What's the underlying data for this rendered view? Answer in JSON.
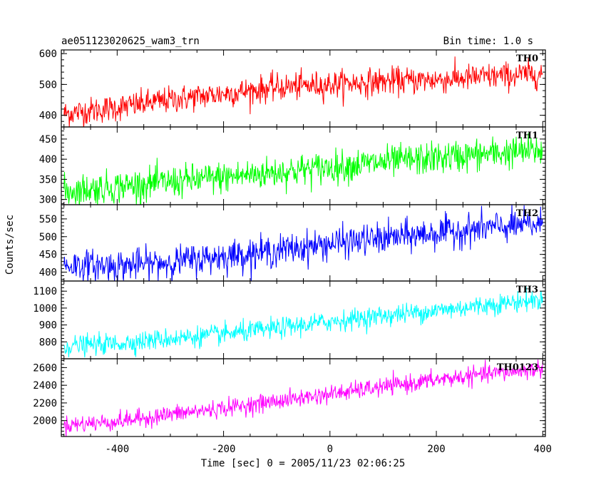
{
  "header": {
    "title": "ae051123020625_wam3_trn",
    "bin_time": "Bin time: 1.0 s"
  },
  "xlabel": "Time [sec] 0 = 2005/11/23 02:06:25",
  "ylabel": "Counts/sec",
  "chart_data": {
    "type": "line",
    "title": "ae051123020625_wam3_trn",
    "xlabel": "Time [sec] 0 = 2005/11/23 02:06:25",
    "ylabel": "Counts/sec",
    "xlim": [
      -505,
      405
    ],
    "x_ticks": [
      -400,
      -200,
      0,
      200,
      400
    ],
    "x_range": [
      -500,
      400
    ],
    "bin_time_s": 1.0,
    "grid": false,
    "series": [
      {
        "name": "TH0",
        "color": "#ff0000",
        "ylim": [
          362,
          612
        ],
        "y_ticks": [
          400,
          500,
          600
        ],
        "trend_x": [
          -500,
          -400,
          -300,
          -200,
          -100,
          0,
          100,
          200,
          300,
          400
        ],
        "trend_y": [
          405,
          425,
          450,
          470,
          490,
          500,
          510,
          515,
          525,
          535
        ],
        "noise_sd": 22
      },
      {
        "name": "TH1",
        "color": "#00ff00",
        "ylim": [
          287,
          480
        ],
        "y_ticks": [
          300,
          350,
          400,
          450
        ],
        "trend_x": [
          -500,
          -400,
          -300,
          -200,
          -100,
          0,
          100,
          200,
          300,
          400
        ],
        "trend_y": [
          320,
          332,
          343,
          355,
          368,
          380,
          392,
          403,
          413,
          422
        ],
        "noise_sd": 20
      },
      {
        "name": "TH2",
        "color": "#0000ff",
        "ylim": [
          375,
          590
        ],
        "y_ticks": [
          400,
          450,
          500,
          550
        ],
        "trend_x": [
          -500,
          -400,
          -300,
          -200,
          -100,
          0,
          100,
          200,
          300,
          400
        ],
        "trend_y": [
          420,
          418,
          428,
          445,
          460,
          480,
          495,
          510,
          525,
          535
        ],
        "noise_sd": 22
      },
      {
        "name": "TH3",
        "color": "#00ffff",
        "ylim": [
          700,
          1160
        ],
        "y_ticks": [
          800,
          900,
          1000,
          1100
        ],
        "trend_x": [
          -500,
          -400,
          -300,
          -200,
          -100,
          0,
          100,
          200,
          300,
          400
        ],
        "trend_y": [
          775,
          790,
          820,
          845,
          880,
          920,
          955,
          985,
          1020,
          1050
        ],
        "noise_sd": 30
      },
      {
        "name": "TH0123",
        "color": "#ff00ff",
        "ylim": [
          1820,
          2700
        ],
        "y_ticks": [
          2000,
          2200,
          2400,
          2600
        ],
        "trend_x": [
          -500,
          -400,
          -300,
          -200,
          -100,
          0,
          100,
          200,
          300,
          400
        ],
        "trend_y": [
          1950,
          1990,
          2070,
          2140,
          2220,
          2300,
          2380,
          2460,
          2530,
          2590
        ],
        "noise_sd": 50
      }
    ]
  }
}
